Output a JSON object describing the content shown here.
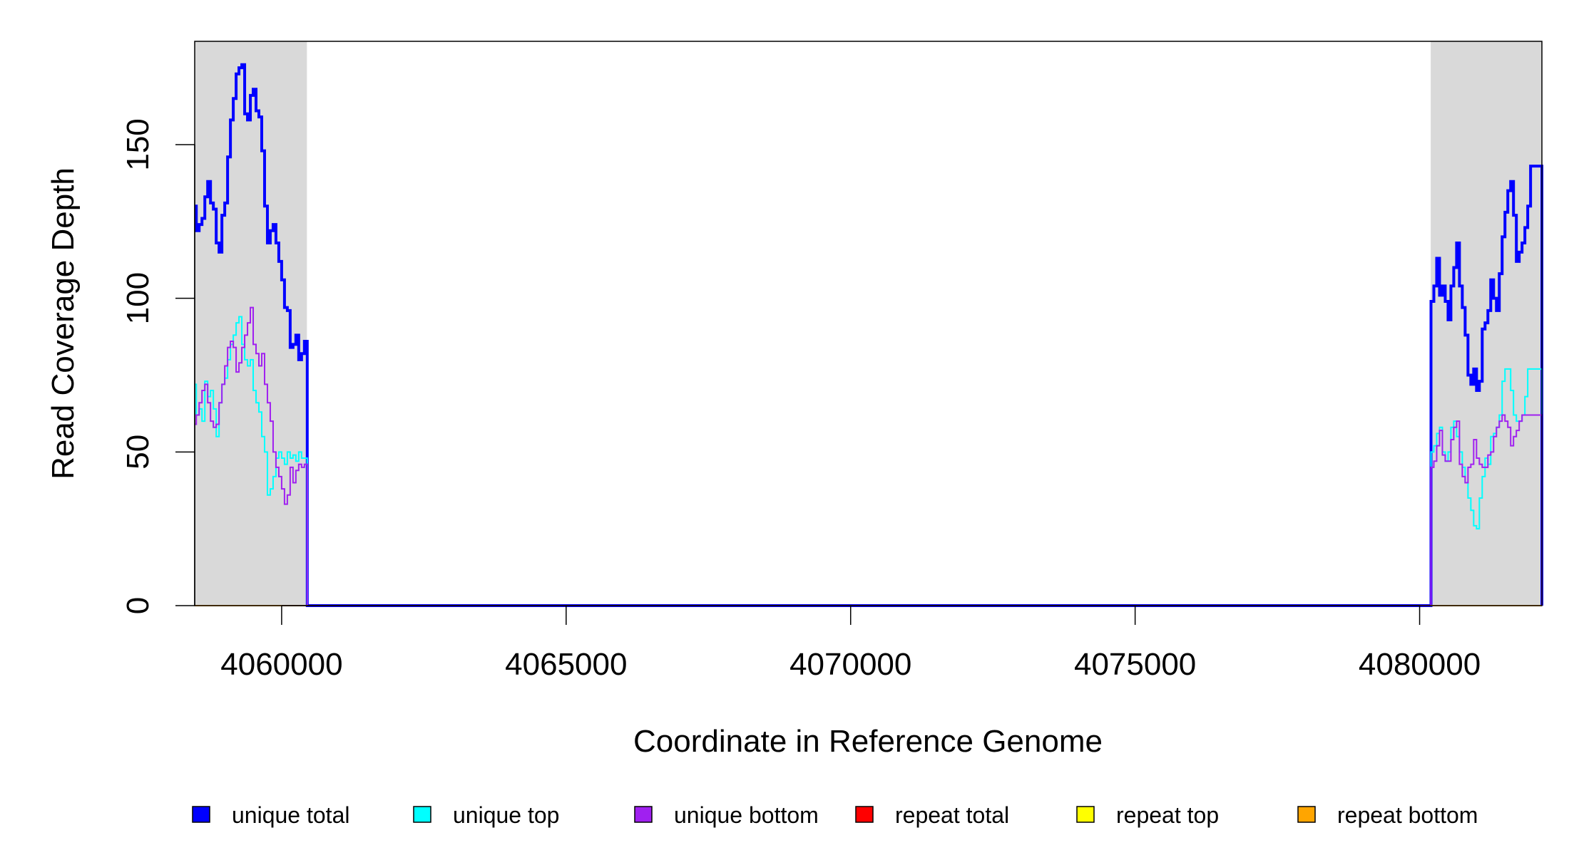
{
  "chart_data": {
    "type": "line",
    "title": "",
    "xlabel": "Coordinate in Reference Genome",
    "ylabel": "Read Coverage Depth",
    "xlim": [
      4058472,
      4082149
    ],
    "ylim": [
      0,
      183.6
    ],
    "x_ticks": [
      4060000,
      4065000,
      4070000,
      4075000,
      4080000
    ],
    "x_tick_labels": [
      "4060000",
      "4065000",
      "4070000",
      "4075000",
      "4080000"
    ],
    "y_ticks": [
      0,
      50,
      100,
      150
    ],
    "y_tick_labels": [
      "0",
      "50",
      "100",
      "150"
    ],
    "grid": false,
    "step": true,
    "highlighted_regions": [
      [
        4058472,
        4060444
      ],
      [
        4080195,
        4082149
      ]
    ],
    "highlight_color": "#d9d9d9",
    "bin_width": 50,
    "segments": [
      {
        "start": 4058450,
        "series": {
          "unique_total": [
            130,
            122,
            124,
            126,
            133,
            138,
            131,
            129,
            118,
            115,
            127,
            131,
            146,
            158,
            165,
            173,
            175,
            176,
            160,
            158,
            166,
            168,
            161,
            159,
            148,
            130,
            118,
            122,
            124,
            118,
            112,
            106,
            97,
            96,
            84,
            85,
            88,
            80,
            82,
            86
          ],
          "unique_top": [
            72,
            62,
            64,
            60,
            73,
            68,
            70,
            64,
            55,
            66,
            72,
            74,
            80,
            85,
            88,
            92,
            94,
            85,
            80,
            78,
            80,
            70,
            66,
            63,
            55,
            50,
            36,
            38,
            42,
            48,
            50,
            48,
            46,
            50,
            48,
            49,
            47,
            50,
            48,
            48
          ],
          "unique_bottom": [
            59,
            62,
            66,
            70,
            72,
            66,
            60,
            58,
            59,
            66,
            72,
            78,
            84,
            86,
            84,
            76,
            79,
            84,
            88,
            92,
            97,
            85,
            82,
            78,
            82,
            72,
            66,
            60,
            50,
            45,
            42,
            38,
            33,
            36,
            45,
            40,
            44,
            46,
            45,
            46
          ],
          "repeat_total": [
            0,
            0,
            0,
            0,
            0,
            0,
            0,
            0,
            0,
            0,
            0,
            0,
            0,
            0,
            0,
            0,
            0,
            0,
            0,
            0,
            0,
            0,
            0,
            0,
            0,
            0,
            0,
            0,
            0,
            0,
            0,
            0,
            0,
            0,
            0,
            0,
            0,
            0,
            0,
            0
          ],
          "repeat_top": [
            0,
            0,
            0,
            0,
            0,
            0,
            0,
            0,
            0,
            0,
            0,
            0,
            0,
            0,
            0,
            0,
            0,
            0,
            0,
            0,
            0,
            0,
            0,
            0,
            0,
            0,
            0,
            0,
            0,
            0,
            0,
            0,
            0,
            0,
            0,
            0,
            0,
            0,
            0,
            0
          ],
          "repeat_bottom": [
            0,
            0,
            0,
            0,
            0,
            0,
            0,
            0,
            0,
            0,
            0,
            0,
            0,
            0,
            0,
            0,
            0,
            0,
            0,
            0,
            0,
            0,
            0,
            0,
            0,
            0,
            0,
            0,
            0,
            0,
            0,
            0,
            0,
            0,
            0,
            0,
            0,
            0,
            0,
            0
          ]
        }
      },
      {
        "start": 4080200,
        "series": {
          "unique_total": [
            99,
            104,
            113,
            101,
            104,
            99,
            93,
            104,
            110,
            118,
            104,
            97,
            88,
            75,
            72,
            77,
            70,
            73,
            90,
            92,
            96,
            106,
            100,
            96,
            108,
            120,
            128,
            135,
            138,
            127,
            112,
            115,
            118,
            123,
            130,
            143,
            143,
            143,
            143
          ],
          "unique_top": [
            50,
            52,
            56,
            58,
            50,
            47,
            50,
            58,
            60,
            55,
            50,
            45,
            40,
            35,
            31,
            26,
            25,
            35,
            42,
            48,
            46,
            55,
            56,
            58,
            62,
            73,
            77,
            77,
            70,
            62,
            60,
            60,
            62,
            68,
            77,
            77,
            77,
            77,
            77
          ],
          "unique_bottom": [
            45,
            47,
            52,
            57,
            49,
            47,
            47,
            54,
            58,
            60,
            46,
            42,
            40,
            45,
            46,
            54,
            48,
            46,
            45,
            45,
            49,
            50,
            55,
            58,
            60,
            62,
            60,
            58,
            52,
            55,
            57,
            60,
            62,
            62,
            62,
            62,
            62,
            62,
            62
          ],
          "repeat_total": [
            0,
            0,
            0,
            0,
            0,
            0,
            0,
            0,
            0,
            0,
            0,
            0,
            0,
            0,
            0,
            0,
            0,
            0,
            0,
            0,
            0,
            0,
            0,
            0,
            0,
            0,
            0,
            0,
            0,
            0,
            0,
            0,
            0,
            0,
            0,
            0,
            0,
            0,
            0
          ],
          "repeat_top": [
            0,
            0,
            0,
            0,
            0,
            0,
            0,
            0,
            0,
            0,
            0,
            0,
            0,
            0,
            0,
            0,
            0,
            0,
            0,
            0,
            0,
            0,
            0,
            0,
            0,
            0,
            0,
            0,
            0,
            0,
            0,
            0,
            0,
            0,
            0,
            0,
            0,
            0,
            0
          ],
          "repeat_bottom": [
            0,
            0,
            0,
            0,
            0,
            0,
            0,
            0,
            0,
            0,
            0,
            0,
            0,
            0,
            0,
            0,
            0,
            0,
            0,
            0,
            0,
            0,
            0,
            0,
            0,
            0,
            0,
            0,
            0,
            0,
            0,
            0,
            0,
            0,
            0,
            0,
            0,
            0,
            0
          ]
        }
      }
    ],
    "series_info": [
      {
        "key": "unique_total",
        "name": "unique total",
        "color": "#0000ff"
      },
      {
        "key": "unique_top",
        "name": "unique top",
        "color": "#00ffff"
      },
      {
        "key": "unique_bottom",
        "name": "unique bottom",
        "color": "#a020f0"
      },
      {
        "key": "repeat_total",
        "name": "repeat total",
        "color": "#ff0000"
      },
      {
        "key": "repeat_top",
        "name": "repeat top",
        "color": "#ffff00"
      },
      {
        "key": "repeat_bottom",
        "name": "repeat bottom",
        "color": "#ffa500"
      }
    ],
    "legend_position": "bottom"
  },
  "legend": {
    "items": [
      {
        "label": "unique total",
        "color": "#0000ff"
      },
      {
        "label": "unique top",
        "color": "#00ffff"
      },
      {
        "label": "unique bottom",
        "color": "#a020f0"
      },
      {
        "label": "repeat total",
        "color": "#ff0000"
      },
      {
        "label": "repeat top",
        "color": "#ffff00"
      },
      {
        "label": "repeat bottom",
        "color": "#ffa500"
      }
    ]
  }
}
